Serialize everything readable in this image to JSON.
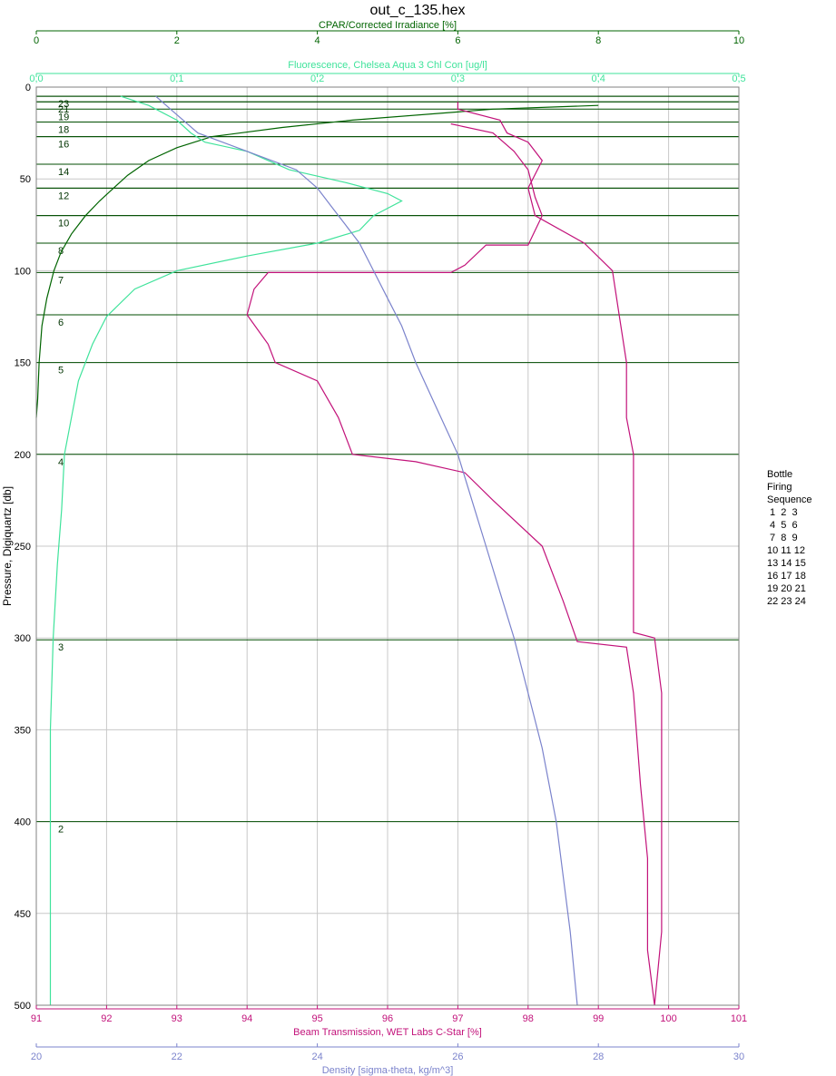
{
  "chart_data": {
    "type": "line",
    "title": "out_c_135.hex",
    "ylabel": "Pressure, Digiquartz [db]",
    "y_axis": {
      "range": [
        0,
        500
      ],
      "inverted": true,
      "ticks": [
        "0",
        "50",
        "100",
        "150",
        "200",
        "250",
        "300",
        "350",
        "400",
        "450",
        "500"
      ],
      "tick_values": [
        0,
        50,
        100,
        150,
        200,
        250,
        300,
        350,
        400,
        450,
        500
      ]
    },
    "grid": true,
    "axes": [
      {
        "id": "cpar",
        "position": "top-outer",
        "label": "CPAR/Corrected Irradiance [%]",
        "color": "#006400",
        "range": [
          0,
          10
        ],
        "ticks": [
          "0",
          "2",
          "4",
          "6",
          "8",
          "10"
        ],
        "tick_values": [
          0,
          2,
          4,
          6,
          8,
          10
        ]
      },
      {
        "id": "fluor",
        "position": "top-inner",
        "label": "Fluorescence, Chelsea Aqua 3 Chl Con [ug/l]",
        "color": "#3fe39b",
        "range": [
          0,
          0.5
        ],
        "ticks": [
          "0,0",
          "0,1",
          "0,2",
          "0,3",
          "0,4",
          "0,5"
        ],
        "tick_values": [
          0,
          0.1,
          0.2,
          0.3,
          0.4,
          0.5
        ]
      },
      {
        "id": "trans",
        "position": "bottom-inner",
        "label": "Beam Transmission, WET Labs C-Star [%]",
        "color": "#c2127a",
        "range": [
          91,
          101
        ],
        "ticks": [
          "91",
          "92",
          "93",
          "94",
          "95",
          "96",
          "97",
          "98",
          "99",
          "100",
          "101"
        ],
        "tick_values": [
          91,
          92,
          93,
          94,
          95,
          96,
          97,
          98,
          99,
          100,
          101
        ]
      },
      {
        "id": "density",
        "position": "bottom-outer",
        "label": "Density [sigma-theta, kg/m^3]",
        "color": "#7b83cc",
        "range": [
          20,
          30
        ],
        "ticks": [
          "20",
          "22",
          "24",
          "26",
          "28",
          "30"
        ],
        "tick_values": [
          20,
          22,
          24,
          26,
          28,
          30
        ]
      }
    ],
    "series": [
      {
        "name": "CPAR/Corrected Irradiance [%]",
        "axis": "cpar",
        "color": "#006400",
        "points": [
          [
            8,
            10
          ],
          [
            6.5,
            12
          ],
          [
            4.5,
            18
          ],
          [
            3.5,
            22
          ],
          [
            2.5,
            27
          ],
          [
            2.0,
            33
          ],
          [
            1.6,
            40
          ],
          [
            1.3,
            48
          ],
          [
            1.1,
            55
          ],
          [
            0.9,
            62
          ],
          [
            0.7,
            70
          ],
          [
            0.5,
            80
          ],
          [
            0.35,
            90
          ],
          [
            0.25,
            100
          ],
          [
            0.15,
            115
          ],
          [
            0.08,
            130
          ],
          [
            0.04,
            150
          ],
          [
            0.02,
            170
          ],
          [
            0.0,
            180
          ]
        ]
      },
      {
        "name": "Fluorescence, Chelsea Aqua 3 Chl Con [ug/l]",
        "axis": "fluor",
        "color": "#3fe39b",
        "points": [
          [
            0.06,
            5
          ],
          [
            0.08,
            10
          ],
          [
            0.1,
            18
          ],
          [
            0.11,
            25
          ],
          [
            0.12,
            30
          ],
          [
            0.15,
            35
          ],
          [
            0.18,
            45
          ],
          [
            0.22,
            52
          ],
          [
            0.25,
            58
          ],
          [
            0.26,
            62
          ],
          [
            0.24,
            70
          ],
          [
            0.23,
            78
          ],
          [
            0.2,
            85
          ],
          [
            0.15,
            92
          ],
          [
            0.1,
            100
          ],
          [
            0.07,
            110
          ],
          [
            0.05,
            125
          ],
          [
            0.04,
            140
          ],
          [
            0.03,
            160
          ],
          [
            0.025,
            180
          ],
          [
            0.02,
            200
          ],
          [
            0.018,
            230
          ],
          [
            0.015,
            260
          ],
          [
            0.012,
            300
          ],
          [
            0.01,
            350
          ],
          [
            0.01,
            400
          ],
          [
            0.01,
            450
          ],
          [
            0.01,
            500
          ]
        ]
      },
      {
        "name": "Beam Transmission, WET Labs C-Star [%]",
        "axis": "trans",
        "color": "#c2127a",
        "points": [
          [
            97.0,
            8
          ],
          [
            97.0,
            12
          ],
          [
            97.6,
            18
          ],
          [
            97.7,
            25
          ],
          [
            98.0,
            30
          ],
          [
            98.2,
            40
          ],
          [
            98.0,
            55
          ],
          [
            98.1,
            70
          ],
          [
            98.8,
            85
          ],
          [
            99.2,
            100
          ],
          [
            99.3,
            125
          ],
          [
            99.4,
            150
          ],
          [
            99.4,
            180
          ],
          [
            99.5,
            200
          ],
          [
            99.5,
            250
          ],
          [
            99.5,
            297
          ],
          [
            99.8,
            300
          ],
          [
            99.9,
            330
          ],
          [
            99.9,
            380
          ],
          [
            99.9,
            420
          ],
          [
            99.9,
            460
          ],
          [
            99.8,
            500
          ]
        ]
      },
      {
        "name": "Beam Transmission, WET Labs C-Star [%]",
        "axis": "trans",
        "color": "#c2127a",
        "points": [
          [
            99.8,
            500
          ],
          [
            99.7,
            470
          ],
          [
            99.7,
            420
          ],
          [
            99.6,
            380
          ],
          [
            99.5,
            330
          ],
          [
            99.4,
            305
          ],
          [
            98.7,
            302
          ],
          [
            98.5,
            280
          ],
          [
            98.2,
            250
          ],
          [
            97.5,
            225
          ],
          [
            97.1,
            210
          ],
          [
            96.4,
            204
          ],
          [
            95.5,
            200
          ],
          [
            95.3,
            180
          ],
          [
            95.0,
            160
          ],
          [
            94.4,
            150
          ],
          [
            94.3,
            140
          ],
          [
            94.0,
            124
          ],
          [
            94.1,
            110
          ],
          [
            94.3,
            101
          ],
          [
            96.9,
            101
          ],
          [
            97.1,
            97
          ],
          [
            97.4,
            86
          ],
          [
            98.0,
            86
          ],
          [
            98.2,
            70
          ],
          [
            98.1,
            60
          ],
          [
            98.0,
            45
          ],
          [
            97.8,
            35
          ],
          [
            97.5,
            25
          ],
          [
            96.9,
            20
          ]
        ]
      },
      {
        "name": "Density [sigma-theta, kg/m^3]",
        "axis": "density",
        "color": "#7b83cc",
        "points": [
          [
            21.7,
            5
          ],
          [
            22.0,
            15
          ],
          [
            22.3,
            25
          ],
          [
            23.0,
            35
          ],
          [
            23.7,
            45
          ],
          [
            24.0,
            55
          ],
          [
            24.2,
            65
          ],
          [
            24.4,
            75
          ],
          [
            24.6,
            85
          ],
          [
            24.8,
            100
          ],
          [
            25.0,
            115
          ],
          [
            25.2,
            130
          ],
          [
            25.4,
            150
          ],
          [
            25.7,
            175
          ],
          [
            26.0,
            200
          ],
          [
            26.2,
            225
          ],
          [
            26.4,
            250
          ],
          [
            26.6,
            275
          ],
          [
            26.8,
            300
          ],
          [
            27.0,
            330
          ],
          [
            27.2,
            360
          ],
          [
            27.4,
            400
          ],
          [
            27.5,
            430
          ],
          [
            27.6,
            460
          ],
          [
            27.7,
            500
          ]
        ]
      }
    ],
    "bottle_depths": [
      {
        "label": "1",
        "p": 500
      },
      {
        "label": "2",
        "p": 400
      },
      {
        "label": "3",
        "p": 301
      },
      {
        "label": "4",
        "p": 200
      },
      {
        "label": "5",
        "p": 150
      },
      {
        "label": "6",
        "p": 124
      },
      {
        "label": "7",
        "p": 101
      },
      {
        "label": "8",
        "p": 85
      },
      {
        "label": "9",
        "p": 70
      },
      {
        "label": "10",
        "p": 70
      },
      {
        "label": "11",
        "p": 55
      },
      {
        "label": "12",
        "p": 55
      },
      {
        "label": "13",
        "p": 42
      },
      {
        "label": "14",
        "p": 42
      },
      {
        "label": "15",
        "p": 27
      },
      {
        "label": "16",
        "p": 27
      },
      {
        "label": "17",
        "p": 19
      },
      {
        "label": "18",
        "p": 19
      },
      {
        "label": "19",
        "p": 12
      },
      {
        "label": "20",
        "p": 8
      },
      {
        "label": "21",
        "p": 8
      },
      {
        "label": "22",
        "p": 5
      },
      {
        "label": "23",
        "p": 5
      }
    ],
    "bottle_labels_shown": [
      {
        "text": "23",
        "p": 5
      },
      {
        "text": "21",
        "p": 8
      },
      {
        "text": "19",
        "p": 12
      },
      {
        "text": "18",
        "p": 19
      },
      {
        "text": "16",
        "p": 27
      },
      {
        "text": "14",
        "p": 42
      },
      {
        "text": "12",
        "p": 55
      },
      {
        "text": "10",
        "p": 70
      },
      {
        "text": "8",
        "p": 85
      },
      {
        "text": "7",
        "p": 101
      },
      {
        "text": "6",
        "p": 124
      },
      {
        "text": "5",
        "p": 150
      },
      {
        "text": "4",
        "p": 200
      },
      {
        "text": "3",
        "p": 301
      },
      {
        "text": "2",
        "p": 400
      }
    ],
    "legend": {
      "lines": [
        "Bottle",
        "Firing",
        "Sequence",
        " 1  2  3",
        " 4  5  6",
        " 7  8  9",
        "10 11 12",
        "13 14 15",
        "16 17 18",
        "19 20 21",
        "22 23 24"
      ],
      "placement": "right"
    }
  }
}
